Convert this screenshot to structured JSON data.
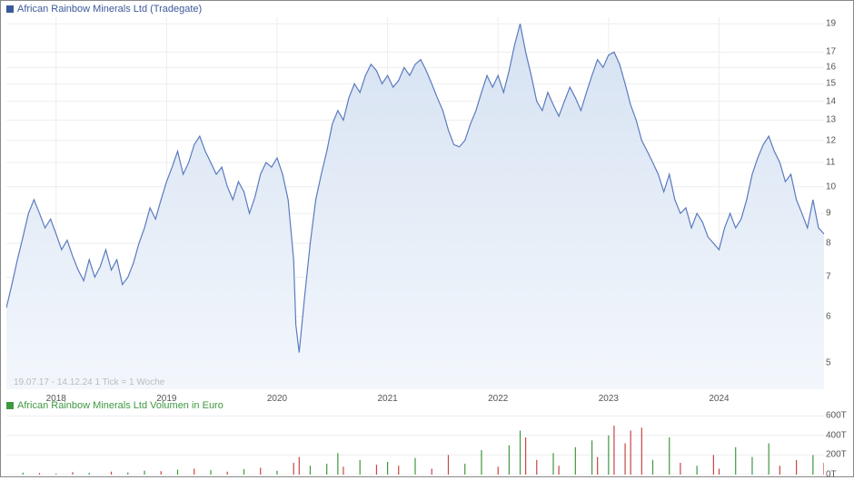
{
  "price_chart": {
    "type": "area",
    "title": "African Rainbow Minerals Ltd (Tradegate)",
    "title_color": "#3a5a9a",
    "swatch_color": "#3a5a9a",
    "line_color": "#5b7bbf",
    "fill_top_color": "#d6e2f2",
    "fill_bottom_color": "#f3f7fc",
    "background_color": "#ffffff",
    "grid_color": "#eeeeee",
    "ylim": [
      4.5,
      19.5
    ],
    "yticks": [
      5,
      6,
      7,
      8,
      9,
      10,
      11,
      12,
      13,
      14,
      15,
      16,
      17,
      19
    ],
    "xlim_years": [
      2017.55,
      2024.95
    ],
    "xticks": [
      2018,
      2019,
      2020,
      2021,
      2022,
      2023,
      2024
    ],
    "date_range_label": "19.07.17 - 14.12.24   1 Tick = 1 Woche",
    "line_width": 1.2,
    "label_fontsize": 10,
    "title_fontsize": 11,
    "data": [
      [
        2017.55,
        6.2
      ],
      [
        2017.6,
        6.8
      ],
      [
        2017.65,
        7.5
      ],
      [
        2017.7,
        8.2
      ],
      [
        2017.75,
        9.0
      ],
      [
        2017.8,
        9.5
      ],
      [
        2017.85,
        9.0
      ],
      [
        2017.9,
        8.5
      ],
      [
        2017.95,
        8.8
      ],
      [
        2018.0,
        8.3
      ],
      [
        2018.05,
        7.8
      ],
      [
        2018.1,
        8.1
      ],
      [
        2018.15,
        7.6
      ],
      [
        2018.2,
        7.2
      ],
      [
        2018.25,
        6.9
      ],
      [
        2018.3,
        7.5
      ],
      [
        2018.35,
        7.0
      ],
      [
        2018.4,
        7.3
      ],
      [
        2018.45,
        7.8
      ],
      [
        2018.5,
        7.2
      ],
      [
        2018.55,
        7.5
      ],
      [
        2018.6,
        6.8
      ],
      [
        2018.65,
        7.0
      ],
      [
        2018.7,
        7.4
      ],
      [
        2018.75,
        8.0
      ],
      [
        2018.8,
        8.5
      ],
      [
        2018.85,
        9.2
      ],
      [
        2018.9,
        8.8
      ],
      [
        2018.95,
        9.5
      ],
      [
        2019.0,
        10.2
      ],
      [
        2019.05,
        10.8
      ],
      [
        2019.1,
        11.5
      ],
      [
        2019.15,
        10.5
      ],
      [
        2019.2,
        11.0
      ],
      [
        2019.25,
        11.8
      ],
      [
        2019.3,
        12.2
      ],
      [
        2019.35,
        11.5
      ],
      [
        2019.4,
        11.0
      ],
      [
        2019.45,
        10.5
      ],
      [
        2019.5,
        10.8
      ],
      [
        2019.55,
        10.0
      ],
      [
        2019.6,
        9.5
      ],
      [
        2019.65,
        10.2
      ],
      [
        2019.7,
        9.8
      ],
      [
        2019.75,
        9.0
      ],
      [
        2019.8,
        9.6
      ],
      [
        2019.85,
        10.5
      ],
      [
        2019.9,
        11.0
      ],
      [
        2019.95,
        10.8
      ],
      [
        2020.0,
        11.2
      ],
      [
        2020.05,
        10.5
      ],
      [
        2020.1,
        9.5
      ],
      [
        2020.15,
        7.5
      ],
      [
        2020.17,
        5.8
      ],
      [
        2020.2,
        5.2
      ],
      [
        2020.25,
        6.5
      ],
      [
        2020.3,
        8.0
      ],
      [
        2020.35,
        9.5
      ],
      [
        2020.4,
        10.5
      ],
      [
        2020.45,
        11.5
      ],
      [
        2020.5,
        12.8
      ],
      [
        2020.55,
        13.5
      ],
      [
        2020.6,
        13.0
      ],
      [
        2020.65,
        14.2
      ],
      [
        2020.7,
        15.0
      ],
      [
        2020.75,
        14.5
      ],
      [
        2020.8,
        15.5
      ],
      [
        2020.85,
        16.2
      ],
      [
        2020.9,
        15.8
      ],
      [
        2020.95,
        15.0
      ],
      [
        2021.0,
        15.5
      ],
      [
        2021.05,
        14.8
      ],
      [
        2021.1,
        15.2
      ],
      [
        2021.15,
        16.0
      ],
      [
        2021.2,
        15.5
      ],
      [
        2021.25,
        16.2
      ],
      [
        2021.3,
        16.5
      ],
      [
        2021.35,
        15.8
      ],
      [
        2021.4,
        15.0
      ],
      [
        2021.45,
        14.2
      ],
      [
        2021.5,
        13.5
      ],
      [
        2021.55,
        12.5
      ],
      [
        2021.6,
        11.8
      ],
      [
        2021.65,
        11.7
      ],
      [
        2021.7,
        12.0
      ],
      [
        2021.75,
        12.8
      ],
      [
        2021.8,
        13.5
      ],
      [
        2021.85,
        14.5
      ],
      [
        2021.9,
        15.5
      ],
      [
        2021.95,
        14.8
      ],
      [
        2022.0,
        15.5
      ],
      [
        2022.05,
        14.5
      ],
      [
        2022.1,
        15.8
      ],
      [
        2022.15,
        17.5
      ],
      [
        2022.2,
        19.0
      ],
      [
        2022.25,
        17.0
      ],
      [
        2022.3,
        15.5
      ],
      [
        2022.35,
        14.0
      ],
      [
        2022.4,
        13.5
      ],
      [
        2022.45,
        14.5
      ],
      [
        2022.5,
        13.8
      ],
      [
        2022.55,
        13.2
      ],
      [
        2022.6,
        14.0
      ],
      [
        2022.65,
        14.8
      ],
      [
        2022.7,
        14.2
      ],
      [
        2022.75,
        13.5
      ],
      [
        2022.8,
        14.5
      ],
      [
        2022.85,
        15.5
      ],
      [
        2022.9,
        16.5
      ],
      [
        2022.95,
        16.0
      ],
      [
        2023.0,
        16.8
      ],
      [
        2023.05,
        17.0
      ],
      [
        2023.1,
        16.2
      ],
      [
        2023.15,
        15.0
      ],
      [
        2023.2,
        13.8
      ],
      [
        2023.25,
        13.0
      ],
      [
        2023.3,
        12.0
      ],
      [
        2023.35,
        11.5
      ],
      [
        2023.4,
        11.0
      ],
      [
        2023.45,
        10.5
      ],
      [
        2023.5,
        9.8
      ],
      [
        2023.55,
        10.5
      ],
      [
        2023.6,
        9.5
      ],
      [
        2023.65,
        9.0
      ],
      [
        2023.7,
        9.2
      ],
      [
        2023.75,
        8.5
      ],
      [
        2023.8,
        9.0
      ],
      [
        2023.85,
        8.7
      ],
      [
        2023.9,
        8.2
      ],
      [
        2023.95,
        8.0
      ],
      [
        2024.0,
        7.8
      ],
      [
        2024.05,
        8.5
      ],
      [
        2024.1,
        9.0
      ],
      [
        2024.15,
        8.5
      ],
      [
        2024.2,
        8.8
      ],
      [
        2024.25,
        9.5
      ],
      [
        2024.3,
        10.5
      ],
      [
        2024.35,
        11.2
      ],
      [
        2024.4,
        11.8
      ],
      [
        2024.45,
        12.2
      ],
      [
        2024.5,
        11.5
      ],
      [
        2024.55,
        11.0
      ],
      [
        2024.6,
        10.2
      ],
      [
        2024.65,
        10.5
      ],
      [
        2024.7,
        9.5
      ],
      [
        2024.75,
        9.0
      ],
      [
        2024.8,
        8.5
      ],
      [
        2024.85,
        9.5
      ],
      [
        2024.9,
        8.5
      ],
      [
        2024.95,
        8.3
      ]
    ]
  },
  "volume_chart": {
    "type": "bar",
    "title": "African Rainbow Minerals Ltd Volumen in Euro",
    "title_color": "#3f9840",
    "swatch_color": "#3f9840",
    "up_color": "#3f9840",
    "down_color": "#c94545",
    "ylim": [
      0,
      650000
    ],
    "yticks": [
      0,
      200000,
      400000,
      600000
    ],
    "ytick_labels": [
      "0T",
      "200T",
      "400T",
      "600T"
    ],
    "bar_width": 1.2,
    "data": [
      [
        2017.7,
        20000,
        1
      ],
      [
        2017.85,
        15000,
        0
      ],
      [
        2018.0,
        10000,
        1
      ],
      [
        2018.15,
        25000,
        0
      ],
      [
        2018.3,
        18000,
        1
      ],
      [
        2018.5,
        30000,
        0
      ],
      [
        2018.65,
        22000,
        1
      ],
      [
        2018.8,
        40000,
        1
      ],
      [
        2018.95,
        35000,
        0
      ],
      [
        2019.1,
        50000,
        1
      ],
      [
        2019.25,
        60000,
        0
      ],
      [
        2019.4,
        45000,
        1
      ],
      [
        2019.55,
        30000,
        0
      ],
      [
        2019.7,
        55000,
        1
      ],
      [
        2019.85,
        70000,
        0
      ],
      [
        2020.0,
        40000,
        1
      ],
      [
        2020.15,
        120000,
        0
      ],
      [
        2020.2,
        180000,
        0
      ],
      [
        2020.3,
        90000,
        1
      ],
      [
        2020.45,
        110000,
        1
      ],
      [
        2020.55,
        220000,
        1
      ],
      [
        2020.6,
        80000,
        0
      ],
      [
        2020.75,
        150000,
        1
      ],
      [
        2020.9,
        100000,
        0
      ],
      [
        2021.0,
        130000,
        1
      ],
      [
        2021.1,
        90000,
        0
      ],
      [
        2021.25,
        170000,
        1
      ],
      [
        2021.4,
        60000,
        0
      ],
      [
        2021.55,
        200000,
        0
      ],
      [
        2021.7,
        110000,
        1
      ],
      [
        2021.85,
        250000,
        1
      ],
      [
        2022.0,
        80000,
        0
      ],
      [
        2022.1,
        300000,
        1
      ],
      [
        2022.2,
        450000,
        1
      ],
      [
        2022.25,
        380000,
        0
      ],
      [
        2022.35,
        150000,
        0
      ],
      [
        2022.5,
        220000,
        1
      ],
      [
        2022.55,
        90000,
        0
      ],
      [
        2022.7,
        280000,
        1
      ],
      [
        2022.85,
        350000,
        1
      ],
      [
        2022.9,
        180000,
        0
      ],
      [
        2023.0,
        400000,
        1
      ],
      [
        2023.05,
        500000,
        0
      ],
      [
        2023.15,
        320000,
        0
      ],
      [
        2023.2,
        450000,
        0
      ],
      [
        2023.3,
        480000,
        0
      ],
      [
        2023.4,
        150000,
        1
      ],
      [
        2023.55,
        380000,
        1
      ],
      [
        2023.65,
        120000,
        0
      ],
      [
        2023.8,
        90000,
        1
      ],
      [
        2023.95,
        200000,
        0
      ],
      [
        2024.0,
        60000,
        0
      ],
      [
        2024.15,
        280000,
        1
      ],
      [
        2024.3,
        180000,
        1
      ],
      [
        2024.45,
        320000,
        1
      ],
      [
        2024.55,
        90000,
        0
      ],
      [
        2024.7,
        150000,
        0
      ],
      [
        2024.85,
        200000,
        1
      ],
      [
        2024.95,
        120000,
        0
      ]
    ]
  }
}
